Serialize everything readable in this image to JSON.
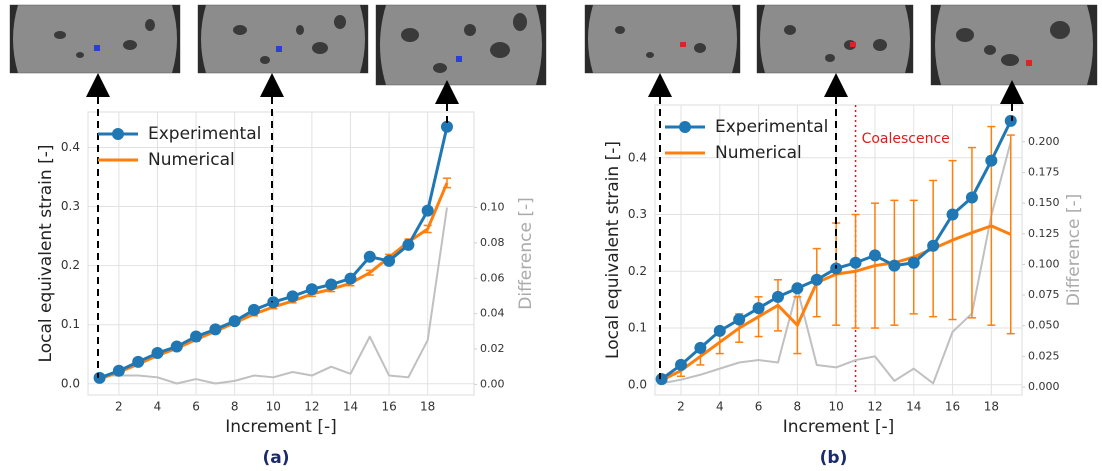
{
  "chart_data": [
    {
      "type": "line",
      "caption": "(a)",
      "xlabel": "Increment [-]",
      "ylabel": "Local equivalent strain [-]",
      "y2label": "Difference [-]",
      "x": [
        1,
        2,
        3,
        4,
        5,
        6,
        7,
        8,
        9,
        10,
        11,
        12,
        13,
        14,
        15,
        16,
        17,
        18,
        19
      ],
      "xlim": [
        0.4,
        20.4
      ],
      "xticks": [
        2,
        4,
        6,
        8,
        10,
        12,
        14,
        16,
        18
      ],
      "ylim": [
        -0.019,
        0.46
      ],
      "yticks": [
        {
          "value": 0,
          "label": "0.0"
        },
        0.1,
        0.2,
        0.3,
        0.4
      ],
      "y2lim": [
        -0.006,
        0.154
      ],
      "y2ticks": [
        {
          "value": 0,
          "label": "0.00"
        },
        {
          "value": 0.02,
          "label": "0.02"
        },
        {
          "value": 0.04,
          "label": "0.04"
        },
        {
          "value": 0.06,
          "label": "0.06"
        },
        {
          "value": 0.08,
          "label": "0.08"
        },
        {
          "value": 0.1,
          "label": "0.10"
        }
      ],
      "grid": true,
      "legend": "upper left",
      "series": [
        {
          "name": "Experimental",
          "color": "#1f77b4",
          "marker": "circle",
          "values": [
            0.01,
            0.022,
            0.037,
            0.052,
            0.063,
            0.08,
            0.092,
            0.106,
            0.125,
            0.138,
            0.148,
            0.16,
            0.168,
            0.178,
            0.215,
            0.208,
            0.235,
            0.293,
            0.435
          ]
        },
        {
          "name": "Numerical",
          "color": "#ff7f0e",
          "values": [
            0.008,
            0.02,
            0.033,
            0.048,
            0.06,
            0.075,
            0.089,
            0.103,
            0.118,
            0.13,
            0.14,
            0.152,
            0.16,
            0.17,
            0.188,
            0.214,
            0.24,
            0.262,
            0.34
          ],
          "errors": [
            0.002,
            0.002,
            0.002,
            0.002,
            0.002,
            0.003,
            0.003,
            0.003,
            0.003,
            0.003,
            0.003,
            0.004,
            0.004,
            0.004,
            0.004,
            0.005,
            0.005,
            0.006,
            0.008
          ]
        },
        {
          "color": "#c0c0c0",
          "axis": "y2",
          "values": [
            0.005,
            0.005,
            0.005,
            0.004,
            0.0005,
            0.003,
            0.0005,
            0.002,
            0.005,
            0.004,
            0.007,
            0.005,
            0.01,
            0.006,
            0.027,
            0.005,
            0.004,
            0.025,
            0.1
          ]
        }
      ]
    },
    {
      "type": "line",
      "caption": "(b)",
      "xlabel": "Increment [-]",
      "ylabel": "Local equivalent strain [-]",
      "y2label": "Difference [-]",
      "x": [
        1,
        2,
        3,
        4,
        5,
        6,
        7,
        8,
        9,
        10,
        11,
        12,
        13,
        14,
        15,
        16,
        17,
        18,
        19
      ],
      "xlim": [
        0.66,
        19.58
      ],
      "xticks": [
        2,
        4,
        6,
        8,
        10,
        12,
        14,
        16,
        18
      ],
      "ylim": [
        -0.018,
        0.493
      ],
      "yticks": [
        {
          "value": 0,
          "label": "0.0"
        },
        0.1,
        0.2,
        0.3,
        0.4
      ],
      "y2lim": [
        -0.0065,
        0.23
      ],
      "y2ticks": [
        {
          "value": 0,
          "label": "0.000"
        },
        {
          "value": 0.025,
          "label": "0.025"
        },
        {
          "value": 0.05,
          "label": "0.050"
        },
        {
          "value": 0.075,
          "label": "0.075"
        },
        {
          "value": 0.1,
          "label": "0.100"
        },
        {
          "value": 0.125,
          "label": "0.125"
        },
        {
          "value": 0.15,
          "label": "0.150"
        },
        {
          "value": 0.175,
          "label": "0.175"
        },
        {
          "value": 0.2,
          "label": "0.200"
        }
      ],
      "grid": true,
      "legend": "upper left",
      "annotation": {
        "text": "Coalescence",
        "x": 11,
        "color": "#e31a1c"
      },
      "series": [
        {
          "name": "Experimental",
          "color": "#1f77b4",
          "marker": "circle",
          "values": [
            0.01,
            0.035,
            0.065,
            0.095,
            0.115,
            0.135,
            0.155,
            0.17,
            0.185,
            0.205,
            0.215,
            0.228,
            0.21,
            0.215,
            0.245,
            0.3,
            0.33,
            0.395,
            0.465
          ]
        },
        {
          "name": "Numerical",
          "color": "#ff7f0e",
          "values": [
            0.008,
            0.025,
            0.05,
            0.075,
            0.1,
            0.12,
            0.14,
            0.105,
            0.18,
            0.195,
            0.2,
            0.21,
            0.215,
            0.225,
            0.24,
            0.255,
            0.268,
            0.28,
            0.265
          ],
          "errors": [
            0.005,
            0.01,
            0.015,
            0.02,
            0.025,
            0.035,
            0.045,
            0.05,
            0.06,
            0.09,
            0.1,
            0.11,
            0.11,
            0.1,
            0.12,
            0.14,
            0.15,
            0.175,
            0.175
          ]
        },
        {
          "color": "#c0c0c0",
          "axis": "y2",
          "values": [
            0.003,
            0.006,
            0.01,
            0.015,
            0.02,
            0.022,
            0.02,
            0.08,
            0.018,
            0.016,
            0.022,
            0.025,
            0.005,
            0.015,
            0.003,
            0.045,
            0.06,
            0.14,
            0.2
          ]
        }
      ]
    }
  ]
}
